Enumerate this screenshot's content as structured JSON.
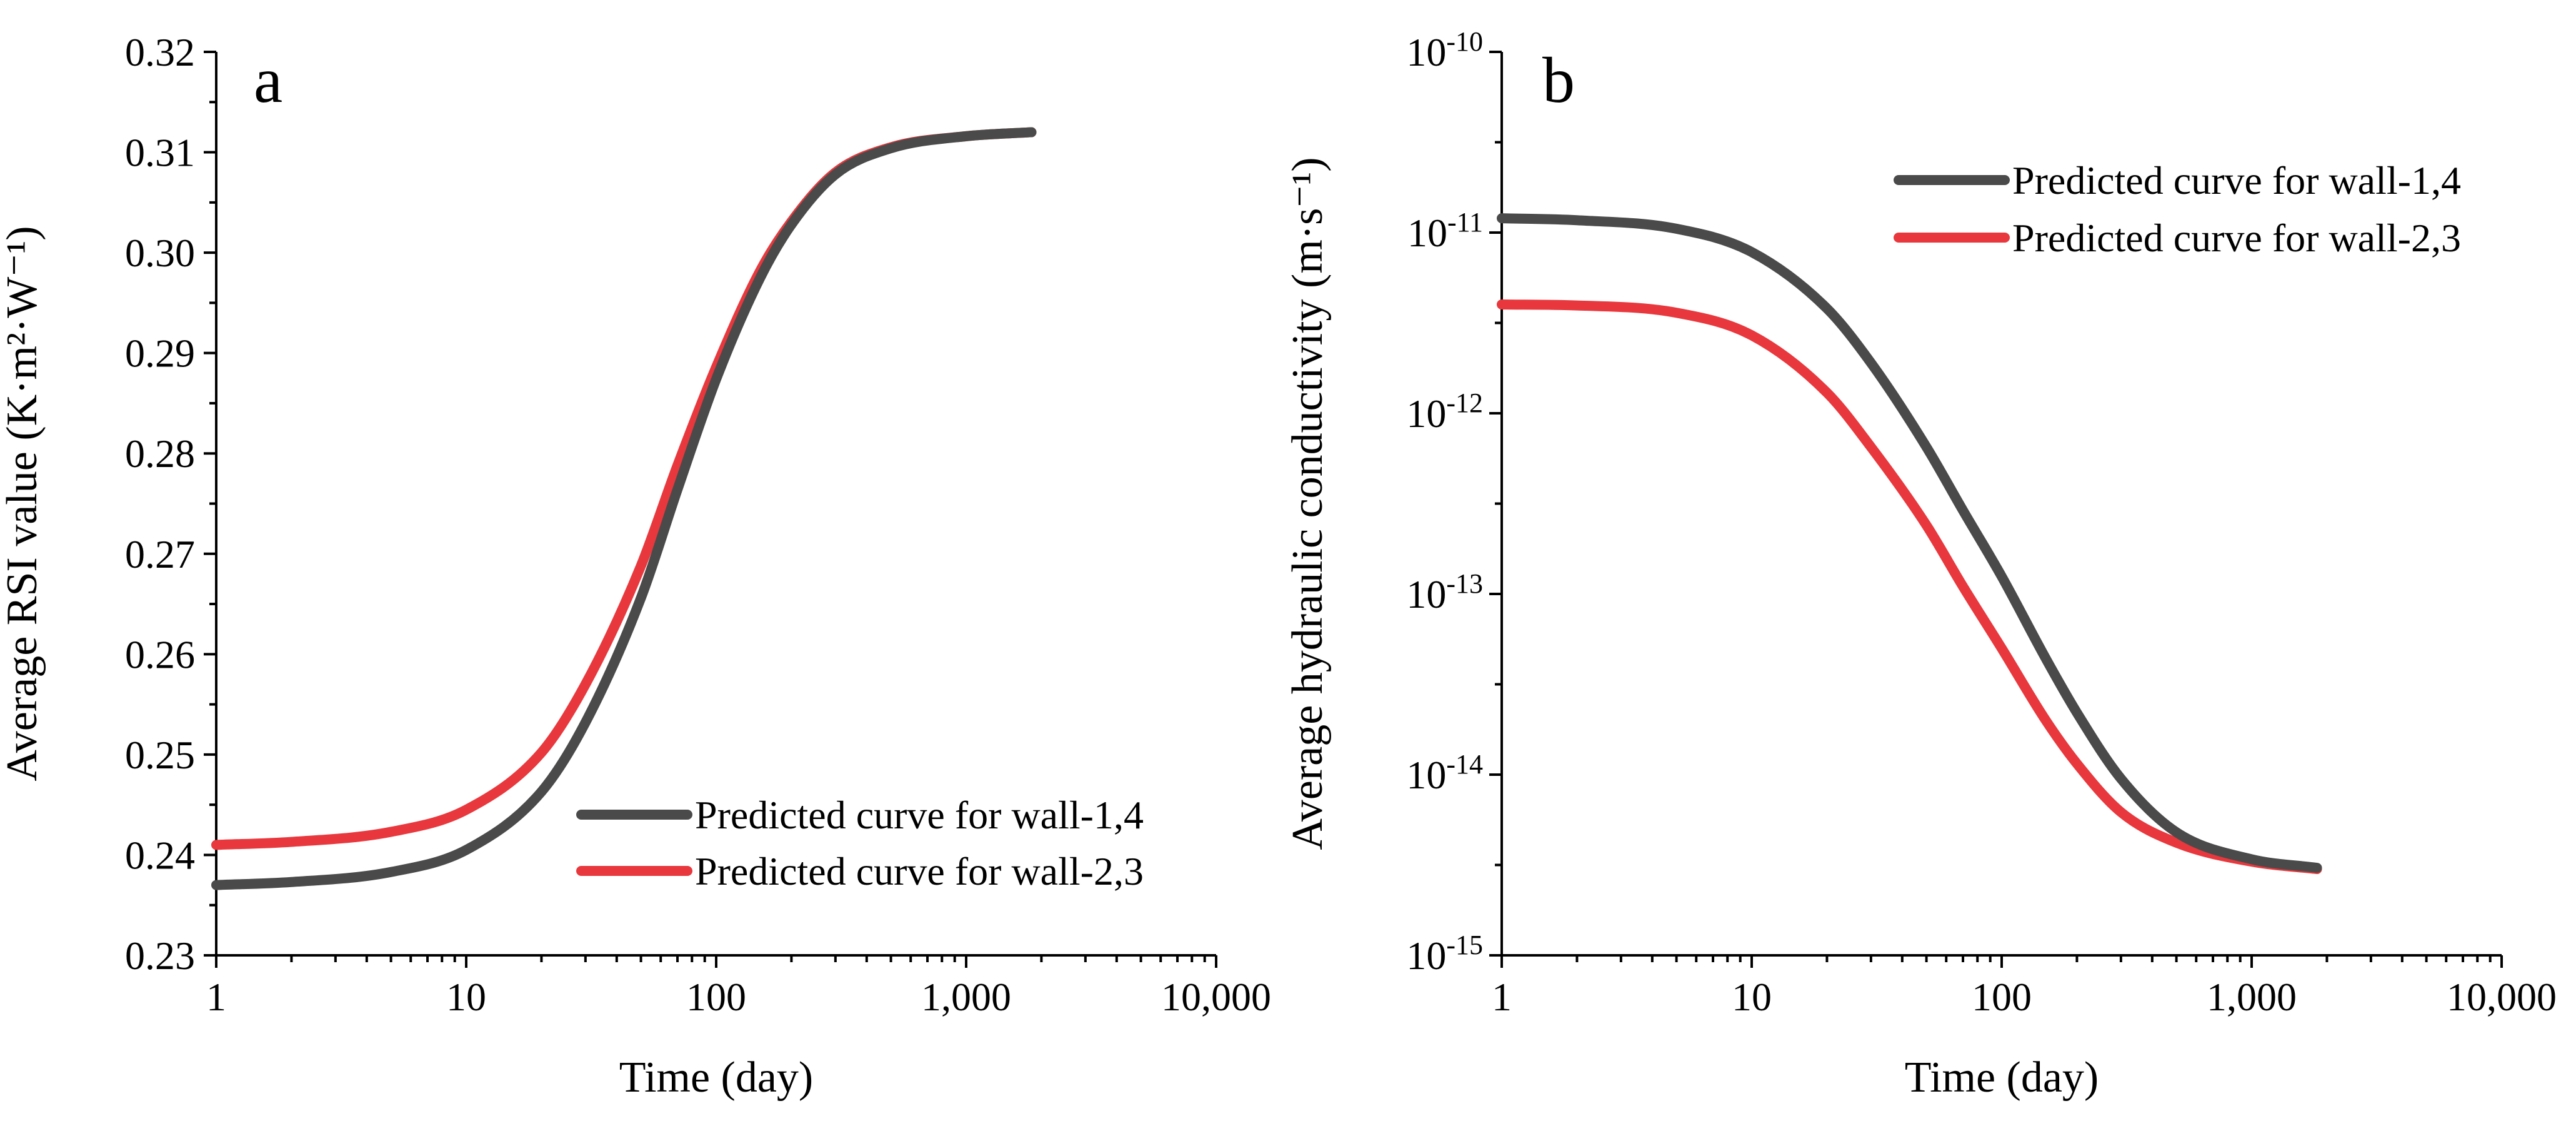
{
  "chart_data": [
    {
      "type": "line",
      "panel_label": "a",
      "xlabel": "Time (day)",
      "ylabel": "Average RSI value (K·m²·W⁻¹)",
      "x_scale": "log",
      "y_scale": "linear",
      "xlim": [
        1,
        10000
      ],
      "ylim": [
        0.23,
        0.32
      ],
      "x_ticks": [
        1,
        10,
        100,
        1000,
        10000
      ],
      "x_tick_labels": [
        "1",
        "10",
        "100",
        "1,000",
        "10,000"
      ],
      "y_ticks": [
        0.23,
        0.24,
        0.25,
        0.26,
        0.27,
        0.28,
        0.29,
        0.3,
        0.31,
        0.32
      ],
      "y_tick_labels": [
        "0.23",
        "0.24",
        "0.25",
        "0.26",
        "0.27",
        "0.28",
        "0.29",
        "0.30",
        "0.31",
        "0.32"
      ],
      "legend_position": "lower-right",
      "x": [
        1,
        2,
        5,
        10,
        20,
        30,
        50,
        70,
        100,
        150,
        200,
        300,
        500,
        1000,
        1825
      ],
      "series": [
        {
          "name": "Predicted curve for wall-1,4",
          "color": "#4a4a4a",
          "values": [
            0.237,
            0.2373,
            0.2383,
            0.2405,
            0.2463,
            0.2532,
            0.2656,
            0.2764,
            0.2874,
            0.2975,
            0.3028,
            0.3078,
            0.3104,
            0.3116,
            0.312
          ]
        },
        {
          "name": "Predicted curve for wall-2,3",
          "color": "#e8383d",
          "values": [
            0.241,
            0.2413,
            0.2423,
            0.2445,
            0.2502,
            0.257,
            0.2688,
            0.2788,
            0.2886,
            0.2982,
            0.3031,
            0.308,
            0.3105,
            0.3116,
            0.312
          ]
        }
      ]
    },
    {
      "type": "line",
      "panel_label": "b",
      "xlabel": "Time (day)",
      "ylabel": "Average hydraulic conductivity (m·s⁻¹)",
      "x_scale": "log",
      "y_scale": "log",
      "xlim": [
        1,
        10000
      ],
      "ylim": [
        1e-15,
        1e-10
      ],
      "x_ticks": [
        1,
        10,
        100,
        1000,
        10000
      ],
      "x_tick_labels": [
        "1",
        "10",
        "100",
        "1,000",
        "10,000"
      ],
      "y_ticks": [
        1e-15,
        1e-14,
        1e-13,
        1e-12,
        1e-11,
        1e-10
      ],
      "y_tick_bases": [
        "10",
        "10",
        "10",
        "10",
        "10",
        "10"
      ],
      "y_tick_exponents": [
        "-15",
        "-14",
        "-13",
        "-12",
        "-11",
        "-10"
      ],
      "legend_position": "top-right",
      "x": [
        1,
        2,
        5,
        10,
        20,
        30,
        50,
        70,
        100,
        150,
        200,
        300,
        500,
        1000,
        1825
      ],
      "series": [
        {
          "name": "Predicted curve for wall-1,4",
          "color": "#4a4a4a",
          "values": [
            1.2e-11,
            1.17e-11,
            1.05e-11,
            7.8e-12,
            3.8e-12,
            1.9e-12,
            6.5e-13,
            2.9e-13,
            1.25e-13,
            4.4e-14,
            2.2e-14,
            9.5e-15,
            4.8e-15,
            3.4e-15,
            3.05e-15
          ]
        },
        {
          "name": "Predicted curve for wall-2,3",
          "color": "#e8383d",
          "values": [
            4e-12,
            3.95e-12,
            3.6e-12,
            2.7e-12,
            1.3e-12,
            6.5e-13,
            2.4e-13,
            1.1e-13,
            5e-14,
            2e-14,
            1.15e-14,
            6.2e-15,
            4.2e-15,
            3.3e-15,
            3e-15
          ]
        }
      ]
    }
  ]
}
